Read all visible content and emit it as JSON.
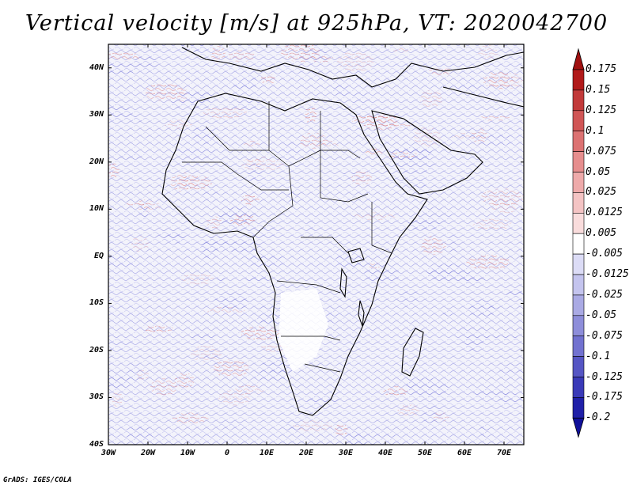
{
  "title": "Vertical velocity [m/s] at 925hPa, VT: 2020042700",
  "credit": "GrADS: IGES/COLA",
  "map": {
    "lon_range": [
      -30,
      75
    ],
    "lat_range": [
      -40,
      45
    ],
    "lat_labels": [
      "40N",
      "30N",
      "20N",
      "10N",
      "EQ",
      "10S",
      "20S",
      "30S",
      "40S"
    ],
    "lon_labels": [
      "30W",
      "20W",
      "10W",
      "0",
      "10E",
      "20E",
      "30E",
      "40E",
      "50E",
      "60E",
      "70E"
    ]
  },
  "colorbar": {
    "labels": [
      "0.175",
      "0.15",
      "0.125",
      "0.1",
      "0.075",
      "0.05",
      "0.025",
      "0.0125",
      "0.005",
      "-0.005",
      "-0.0125",
      "-0.025",
      "-0.05",
      "-0.075",
      "-0.1",
      "-0.125",
      "-0.175",
      "-0.2"
    ],
    "colors": [
      "#b11a1a",
      "#c23a3a",
      "#d05656",
      "#dc7272",
      "#e68e8e",
      "#eeaaaa",
      "#f4c4c4",
      "#f9dcdc",
      "#ffffff",
      "#dcdcf6",
      "#c4c4ee",
      "#aaaae4",
      "#8e8eda",
      "#7272d0",
      "#5656c4",
      "#3a3ab8",
      "#2020a8"
    ],
    "top_arrow_color": "#a01010",
    "bottom_arrow_color": "#10109a"
  }
}
